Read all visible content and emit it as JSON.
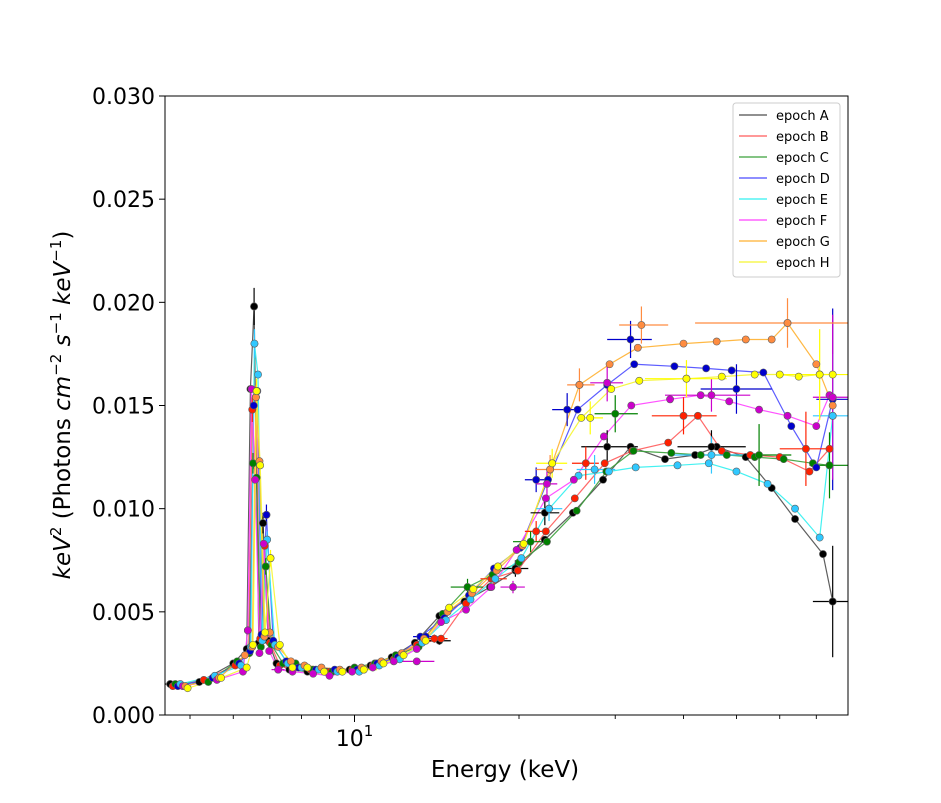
{
  "chart_data": {
    "type": "scatter",
    "title": "",
    "xlabel": "Energy (keV)",
    "ylabel": "keV² (Photons cm⁻² s⁻¹ keV⁻¹)",
    "ylabel_parts": {
      "pre": "keV",
      "pre_sup": "2",
      "mid1": " (Photons ",
      "cm": "cm",
      "cm_sup": "−2",
      "s": " s",
      "s_sup": "−1",
      "kev2": " keV",
      "kev2_sup": "−1",
      "close": ")"
    },
    "xscale": "log",
    "xlim": [
      4.5,
      80
    ],
    "ylim": [
      0,
      0.03
    ],
    "yticks": [
      0,
      0.005,
      0.01,
      0.015,
      0.02,
      0.025,
      0.03
    ],
    "ytick_labels": [
      "0.000",
      "0.005",
      "0.010",
      "0.015",
      "0.020",
      "0.025",
      "0.030"
    ],
    "xtick_major": [
      {
        "value": 10,
        "base": "10",
        "exp": "1"
      }
    ],
    "xtick_minor": [
      5,
      6,
      7,
      8,
      9,
      20,
      30,
      40,
      50,
      60,
      70
    ],
    "legend_position": "top-right",
    "series": [
      {
        "name": "epoch A",
        "line_color": "#4d4d4d",
        "marker_color": "#000000",
        "x": [
          4.6,
          5.2,
          6.0,
          6.35,
          6.45,
          6.55,
          6.68,
          6.8,
          6.95,
          7.2,
          7.6,
          8.2,
          8.9,
          9.8,
          10.7,
          11.7,
          12.9,
          14.3,
          15.9,
          17.7,
          19.7,
          22.3,
          25.1,
          28.5,
          32.0,
          37.0,
          42.0,
          46.0,
          52.0,
          58.0,
          64.0,
          72.0,
          75.0
        ],
        "y": [
          0.0015,
          0.0016,
          0.0025,
          0.0032,
          0.0158,
          0.0198,
          0.0035,
          0.0093,
          0.0036,
          0.0025,
          0.0022,
          0.0021,
          0.0021,
          0.0022,
          0.0024,
          0.0028,
          0.0035,
          0.0048,
          0.0055,
          0.0062,
          0.007,
          0.0085,
          0.0098,
          0.0114,
          0.013,
          0.0124,
          0.0126,
          0.013,
          0.0125,
          0.011,
          0.0095,
          0.0078,
          0.0055
        ],
        "err_points": [
          {
            "x": 4.6,
            "y": 0.0015,
            "xlo": 4.5,
            "xhi": 4.75,
            "dy": 0.0001
          },
          {
            "x": 6.55,
            "y": 0.0198,
            "xlo": 6.5,
            "xhi": 6.6,
            "dy": 0.0009
          },
          {
            "x": 6.8,
            "y": 0.0093,
            "xlo": 6.75,
            "xhi": 6.85,
            "dy": 0.0005
          },
          {
            "x": 14.3,
            "y": 0.0036,
            "xlo": 13.5,
            "xhi": 15.0,
            "dy": 0.0002
          },
          {
            "x": 19.7,
            "y": 0.0071,
            "xlo": 18.6,
            "xhi": 20.8,
            "dy": 0.0004
          },
          {
            "x": 22.3,
            "y": 0.0098,
            "xlo": 21.0,
            "xhi": 23.7,
            "dy": 0.0006
          },
          {
            "x": 29.0,
            "y": 0.013,
            "xlo": 26.0,
            "xhi": 33.0,
            "dy": 0.0008
          },
          {
            "x": 45.0,
            "y": 0.013,
            "xlo": 39.0,
            "xhi": 52.0,
            "dy": 0.0008
          },
          {
            "x": 75.0,
            "y": 0.0055,
            "xlo": 69.0,
            "xhi": 81.0,
            "dy": 0.0027
          }
        ]
      },
      {
        "name": "epoch B",
        "line_color": "#ff5a5a",
        "marker_color": "#ff2000",
        "x": [
          4.65,
          5.3,
          6.05,
          6.4,
          6.5,
          6.6,
          6.72,
          6.85,
          7.0,
          7.3,
          7.7,
          8.3,
          9.0,
          9.9,
          10.8,
          11.8,
          13.0,
          14.4,
          16.0,
          17.8,
          19.9,
          22.4,
          25.3,
          28.7,
          32.2,
          37.5,
          42.5,
          47.0,
          53.0,
          60.0,
          68.0,
          74.0
        ],
        "y": [
          0.0014,
          0.0017,
          0.0024,
          0.003,
          0.0148,
          0.0154,
          0.0037,
          0.0082,
          0.0035,
          0.0024,
          0.0022,
          0.0022,
          0.0021,
          0.0022,
          0.0024,
          0.0027,
          0.0034,
          0.0037,
          0.0054,
          0.0066,
          0.007,
          0.0089,
          0.0105,
          0.0122,
          0.0128,
          0.0132,
          0.0145,
          0.0128,
          0.0126,
          0.0125,
          0.0118,
          0.0129
        ],
        "err_points": [
          {
            "x": 6.5,
            "y": 0.0148,
            "xlo": 6.45,
            "xhi": 6.55,
            "dy": 0.0006
          },
          {
            "x": 14.0,
            "y": 0.0037,
            "xlo": 13.2,
            "xhi": 14.8,
            "dy": 0.0002
          },
          {
            "x": 18.0,
            "y": 0.0066,
            "xlo": 17.0,
            "xhi": 19.0,
            "dy": 0.0003
          },
          {
            "x": 21.5,
            "y": 0.0089,
            "xlo": 20.5,
            "xhi": 22.6,
            "dy": 0.0005
          },
          {
            "x": 26.5,
            "y": 0.0122,
            "xlo": 25.0,
            "xhi": 28.0,
            "dy": 0.0008
          },
          {
            "x": 40.0,
            "y": 0.0145,
            "xlo": 35.0,
            "xhi": 46.0,
            "dy": 0.0009
          },
          {
            "x": 67.0,
            "y": 0.0129,
            "xlo": 60.0,
            "xhi": 75.0,
            "dy": 0.0018
          }
        ]
      },
      {
        "name": "epoch C",
        "line_color": "#3aa03a",
        "marker_color": "#008000",
        "x": [
          4.7,
          5.4,
          6.1,
          6.42,
          6.52,
          6.62,
          6.74,
          6.88,
          7.05,
          7.4,
          7.8,
          8.4,
          9.1,
          10.0,
          10.9,
          11.9,
          13.1,
          14.5,
          16.1,
          17.9,
          20.0,
          22.5,
          25.5,
          28.9,
          32.4,
          38.0,
          43.0,
          48.0,
          54.0,
          61.0,
          69.0,
          74.0
        ],
        "y": [
          0.0015,
          0.0016,
          0.0026,
          0.003,
          0.0122,
          0.0115,
          0.0033,
          0.0072,
          0.0034,
          0.0025,
          0.0025,
          0.0022,
          0.0021,
          0.0023,
          0.0025,
          0.0029,
          0.0033,
          0.0049,
          0.0062,
          0.0068,
          0.0074,
          0.0084,
          0.0099,
          0.0118,
          0.0128,
          0.0127,
          0.0126,
          0.0126,
          0.0125,
          0.0124,
          0.0122,
          0.0121
        ],
        "err_points": [
          {
            "x": 6.52,
            "y": 0.0122,
            "xlo": 6.48,
            "xhi": 6.56,
            "dy": 0.0005
          },
          {
            "x": 6.88,
            "y": 0.0072,
            "xlo": 6.84,
            "xhi": 6.92,
            "dy": 0.0004
          },
          {
            "x": 16.1,
            "y": 0.0062,
            "xlo": 15.0,
            "xhi": 17.2,
            "dy": 0.0004
          },
          {
            "x": 21.0,
            "y": 0.0084,
            "xlo": 19.5,
            "xhi": 22.5,
            "dy": 0.0005
          },
          {
            "x": 30.0,
            "y": 0.0146,
            "xlo": 27.5,
            "xhi": 33.0,
            "dy": 0.0009
          },
          {
            "x": 55.0,
            "y": 0.0126,
            "xlo": 47.0,
            "xhi": 63.0,
            "dy": 0.0015
          },
          {
            "x": 74.0,
            "y": 0.0121,
            "xlo": 68.0,
            "xhi": 80.0,
            "dy": 0.0016
          }
        ]
      },
      {
        "name": "epoch D",
        "line_color": "#4a4aff",
        "marker_color": "#0000cc",
        "x": [
          4.75,
          5.5,
          6.15,
          6.44,
          6.54,
          6.64,
          6.76,
          6.9,
          7.1,
          7.5,
          7.9,
          8.5,
          9.2,
          10.1,
          11.0,
          12.0,
          13.2,
          14.6,
          16.2,
          18.0,
          20.1,
          22.6,
          25.6,
          29.0,
          32.5,
          38.5,
          44.0,
          49.0,
          56.0,
          63.0,
          70.0,
          75.0
        ],
        "y": [
          0.0014,
          0.0018,
          0.0025,
          0.0031,
          0.015,
          0.0157,
          0.0039,
          0.0097,
          0.0036,
          0.0026,
          0.0023,
          0.0022,
          0.0022,
          0.0022,
          0.0025,
          0.0028,
          0.0038,
          0.0047,
          0.0058,
          0.0071,
          0.0081,
          0.0114,
          0.0148,
          0.016,
          0.017,
          0.0169,
          0.0168,
          0.0167,
          0.0166,
          0.014,
          0.012,
          0.0153
        ],
        "err_points": [
          {
            "x": 6.9,
            "y": 0.0097,
            "xlo": 6.86,
            "xhi": 6.94,
            "dy": 0.0005
          },
          {
            "x": 13.5,
            "y": 0.0038,
            "xlo": 12.8,
            "xhi": 14.2,
            "dy": 0.0002
          },
          {
            "x": 21.5,
            "y": 0.0114,
            "xlo": 20.5,
            "xhi": 22.5,
            "dy": 0.0006
          },
          {
            "x": 24.5,
            "y": 0.0148,
            "xlo": 23.0,
            "xhi": 26.0,
            "dy": 0.0008
          },
          {
            "x": 32.0,
            "y": 0.0182,
            "xlo": 29.0,
            "xhi": 35.0,
            "dy": 0.0009
          },
          {
            "x": 50.0,
            "y": 0.0158,
            "xlo": 43.0,
            "xhi": 58.0,
            "dy": 0.0012
          },
          {
            "x": 75.0,
            "y": 0.0153,
            "xlo": 70.0,
            "xhi": 80.0,
            "dy": 0.0044
          }
        ]
      },
      {
        "name": "epoch E",
        "line_color": "#30f0f0",
        "marker_color": "#30c8ff",
        "x": [
          4.8,
          5.55,
          6.2,
          6.46,
          6.56,
          6.66,
          6.78,
          6.92,
          7.15,
          7.55,
          8.0,
          8.6,
          9.3,
          10.2,
          11.1,
          12.1,
          13.3,
          14.7,
          16.3,
          18.1,
          20.2,
          22.7,
          25.7,
          29.2,
          32.7,
          39.0,
          44.5,
          50.0,
          57.0,
          64.0,
          71.0,
          75.0
        ],
        "y": [
          0.0015,
          0.0019,
          0.0024,
          0.0033,
          0.018,
          0.0165,
          0.0036,
          0.0085,
          0.0034,
          0.0025,
          0.0023,
          0.0022,
          0.0021,
          0.0021,
          0.0024,
          0.0027,
          0.0035,
          0.0046,
          0.0056,
          0.0066,
          0.0076,
          0.01,
          0.0116,
          0.0118,
          0.012,
          0.0121,
          0.0122,
          0.0118,
          0.0112,
          0.01,
          0.0086,
          0.0145
        ],
        "err_points": [
          {
            "x": 6.56,
            "y": 0.018,
            "xlo": 6.52,
            "xhi": 6.6,
            "dy": 0.0007
          },
          {
            "x": 6.92,
            "y": 0.0085,
            "xlo": 6.88,
            "xhi": 6.96,
            "dy": 0.0004
          },
          {
            "x": 22.7,
            "y": 0.01,
            "xlo": 21.5,
            "xhi": 24.0,
            "dy": 0.0006
          },
          {
            "x": 27.5,
            "y": 0.0119,
            "xlo": 25.5,
            "xhi": 30.0,
            "dy": 0.0007
          },
          {
            "x": 45.0,
            "y": 0.0126,
            "xlo": 38.0,
            "xhi": 52.0,
            "dy": 0.0009
          },
          {
            "x": 75.0,
            "y": 0.0145,
            "xlo": 69.0,
            "xhi": 81.0,
            "dy": 0.003
          }
        ]
      },
      {
        "name": "epoch F",
        "line_color": "#ff40ff",
        "marker_color": "#cc00cc",
        "x": [
          4.85,
          5.6,
          6.25,
          6.38,
          6.48,
          6.58,
          6.7,
          6.82,
          6.98,
          7.25,
          7.7,
          8.4,
          9.0,
          9.9,
          10.8,
          11.8,
          13.0,
          14.4,
          16.0,
          17.8,
          19.8,
          22.4,
          25.2,
          28.6,
          32.1,
          37.8,
          43.0,
          48.5,
          55.0,
          62.0,
          70.0,
          74.0
        ],
        "y": [
          0.0014,
          0.0017,
          0.0021,
          0.0041,
          0.0158,
          0.0114,
          0.003,
          0.0083,
          0.0031,
          0.0022,
          0.0021,
          0.002,
          0.0019,
          0.0021,
          0.0023,
          0.0026,
          0.0032,
          0.0045,
          0.0051,
          0.0062,
          0.008,
          0.0105,
          0.0114,
          0.0135,
          0.015,
          0.0153,
          0.0155,
          0.0152,
          0.0148,
          0.0145,
          0.014,
          0.0155
        ],
        "err_points": [
          {
            "x": 6.38,
            "y": 0.0041,
            "xlo": 6.34,
            "xhi": 6.42,
            "dy": 0.0002
          },
          {
            "x": 7.25,
            "y": 0.0022,
            "xlo": 7.05,
            "xhi": 7.45,
            "dy": 0.0001
          },
          {
            "x": 13.0,
            "y": 0.0026,
            "xlo": 12.0,
            "xhi": 14.0,
            "dy": 0.0001
          },
          {
            "x": 19.5,
            "y": 0.0062,
            "xlo": 18.5,
            "xhi": 20.5,
            "dy": 0.0003
          },
          {
            "x": 22.5,
            "y": 0.0112,
            "xlo": 21.5,
            "xhi": 23.5,
            "dy": 0.0006
          },
          {
            "x": 29.0,
            "y": 0.0161,
            "xlo": 27.0,
            "xhi": 31.0,
            "dy": 0.0009
          },
          {
            "x": 45.0,
            "y": 0.0155,
            "xlo": 37.0,
            "xhi": 53.0,
            "dy": 0.0008
          },
          {
            "x": 75.0,
            "y": 0.0154,
            "xlo": 69.0,
            "xhi": 81.0,
            "dy": 0.004
          }
        ]
      },
      {
        "name": "epoch G",
        "line_color": "#ffb030",
        "marker_color": "#ff8c40",
        "x": [
          4.9,
          5.65,
          6.3,
          6.5,
          6.6,
          6.7,
          6.84,
          7.0,
          7.25,
          7.65,
          8.1,
          8.7,
          9.4,
          10.3,
          11.2,
          12.2,
          13.4,
          14.8,
          16.4,
          18.2,
          20.3,
          22.8,
          25.8,
          29.3,
          33.0,
          40.0,
          46.0,
          52.0,
          58.0,
          62.0,
          70.0,
          75.0
        ],
        "y": [
          0.0014,
          0.0018,
          0.0029,
          0.0033,
          0.0154,
          0.0123,
          0.0038,
          0.004,
          0.0033,
          0.0026,
          0.0024,
          0.0023,
          0.0022,
          0.0023,
          0.0026,
          0.003,
          0.0037,
          0.005,
          0.0059,
          0.007,
          0.0082,
          0.0119,
          0.016,
          0.017,
          0.0178,
          0.018,
          0.0181,
          0.0182,
          0.0182,
          0.019,
          0.017,
          0.015
        ],
        "err_points": [
          {
            "x": 6.6,
            "y": 0.0154,
            "xlo": 6.56,
            "xhi": 6.64,
            "dy": 0.0006
          },
          {
            "x": 7.0,
            "y": 0.004,
            "xlo": 6.95,
            "xhi": 7.05,
            "dy": 0.0002
          },
          {
            "x": 22.8,
            "y": 0.0119,
            "xlo": 21.5,
            "xhi": 24.0,
            "dy": 0.0007
          },
          {
            "x": 25.8,
            "y": 0.016,
            "xlo": 24.5,
            "xhi": 27.5,
            "dy": 0.0008
          },
          {
            "x": 33.5,
            "y": 0.0189,
            "xlo": 30.5,
            "xhi": 37.5,
            "dy": 0.0009
          },
          {
            "x": 62.0,
            "y": 0.019,
            "xlo": 42.0,
            "xhi": 82.0,
            "dy": 0.0012
          }
        ]
      },
      {
        "name": "epoch H",
        "line_color": "#f5f530",
        "marker_color": "#ffff00",
        "x": [
          4.95,
          5.7,
          6.35,
          6.52,
          6.62,
          6.72,
          6.86,
          7.02,
          7.3,
          7.7,
          8.2,
          8.8,
          9.5,
          10.4,
          11.3,
          12.3,
          13.5,
          14.9,
          16.5,
          18.3,
          20.4,
          23.0,
          26.0,
          29.5,
          33.2,
          40.5,
          47.0,
          54.0,
          60.0,
          65.0,
          71.0,
          75.0
        ],
        "y": [
          0.0013,
          0.0018,
          0.0023,
          0.0034,
          0.0157,
          0.0121,
          0.004,
          0.0076,
          0.0034,
          0.0023,
          0.0023,
          0.0021,
          0.0021,
          0.0022,
          0.0025,
          0.0029,
          0.0036,
          0.0052,
          0.0061,
          0.0072,
          0.0083,
          0.0122,
          0.0144,
          0.0158,
          0.0162,
          0.0163,
          0.0164,
          0.0165,
          0.0165,
          0.0164,
          0.0165,
          0.0165
        ],
        "err_points": [
          {
            "x": 6.62,
            "y": 0.0157,
            "xlo": 6.58,
            "xhi": 6.66,
            "dy": 0.0006
          },
          {
            "x": 7.02,
            "y": 0.0076,
            "xlo": 6.98,
            "xhi": 7.06,
            "dy": 0.0004
          },
          {
            "x": 10.4,
            "y": 0.0022,
            "xlo": 9.8,
            "xhi": 11.0,
            "dy": 0.0001
          },
          {
            "x": 23.0,
            "y": 0.0122,
            "xlo": 21.5,
            "xhi": 24.5,
            "dy": 0.0007
          },
          {
            "x": 27.0,
            "y": 0.0144,
            "xlo": 25.5,
            "xhi": 28.5,
            "dy": 0.0008
          },
          {
            "x": 40.5,
            "y": 0.0163,
            "xlo": 34.0,
            "xhi": 48.0,
            "dy": 0.0009
          },
          {
            "x": 71.0,
            "y": 0.0165,
            "xlo": 60.0,
            "xhi": 82.0,
            "dy": 0.0022
          }
        ]
      }
    ]
  }
}
